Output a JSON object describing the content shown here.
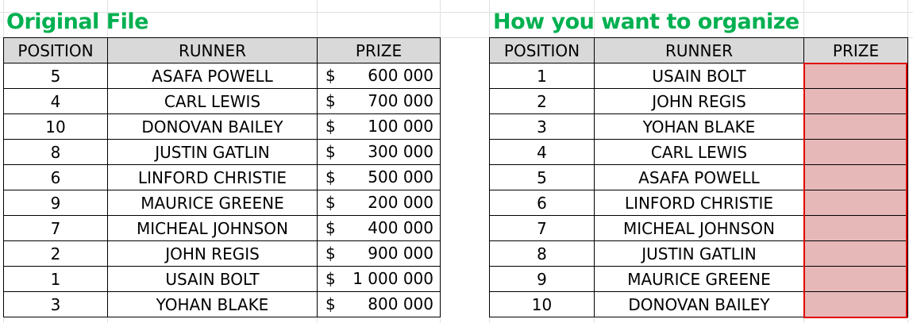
{
  "original": {
    "title": "Original File",
    "headers": {
      "position": "POSITION",
      "runner": "RUNNER",
      "prize": "PRIZE"
    },
    "currency": "$",
    "rows": [
      {
        "position": "5",
        "runner": "ASAFA POWELL",
        "prize": "600 000"
      },
      {
        "position": "4",
        "runner": "CARL LEWIS",
        "prize": "700 000"
      },
      {
        "position": "10",
        "runner": "DONOVAN BAILEY",
        "prize": "100 000"
      },
      {
        "position": "8",
        "runner": "JUSTIN GATLIN",
        "prize": "300 000"
      },
      {
        "position": "6",
        "runner": "LINFORD CHRISTIE",
        "prize": "500 000"
      },
      {
        "position": "9",
        "runner": "MAURICE GREENE",
        "prize": "200 000"
      },
      {
        "position": "7",
        "runner": "MICHEAL JOHNSON",
        "prize": "400 000"
      },
      {
        "position": "2",
        "runner": "JOHN REGIS",
        "prize": "900 000"
      },
      {
        "position": "1",
        "runner": "USAIN BOLT",
        "prize": "1 000 000"
      },
      {
        "position": "3",
        "runner": "YOHAN BLAKE",
        "prize": "800 000"
      }
    ]
  },
  "target": {
    "title": "How you want to organize",
    "headers": {
      "position": "POSITION",
      "runner": "RUNNER",
      "prize": "PRIZE"
    },
    "highlight_color": "#e6b8b7",
    "border_color": "#e00000",
    "rows": [
      {
        "position": "1",
        "runner": "USAIN BOLT"
      },
      {
        "position": "2",
        "runner": "JOHN REGIS"
      },
      {
        "position": "3",
        "runner": "YOHAN BLAKE"
      },
      {
        "position": "4",
        "runner": "CARL LEWIS"
      },
      {
        "position": "5",
        "runner": "ASAFA POWELL"
      },
      {
        "position": "6",
        "runner": "LINFORD CHRISTIE"
      },
      {
        "position": "7",
        "runner": "MICHEAL JOHNSON"
      },
      {
        "position": "8",
        "runner": "JUSTIN GATLIN"
      },
      {
        "position": "9",
        "runner": "MAURICE GREENE"
      },
      {
        "position": "10",
        "runner": "DONOVAN BAILEY"
      }
    ]
  },
  "title_color": "#00b050"
}
